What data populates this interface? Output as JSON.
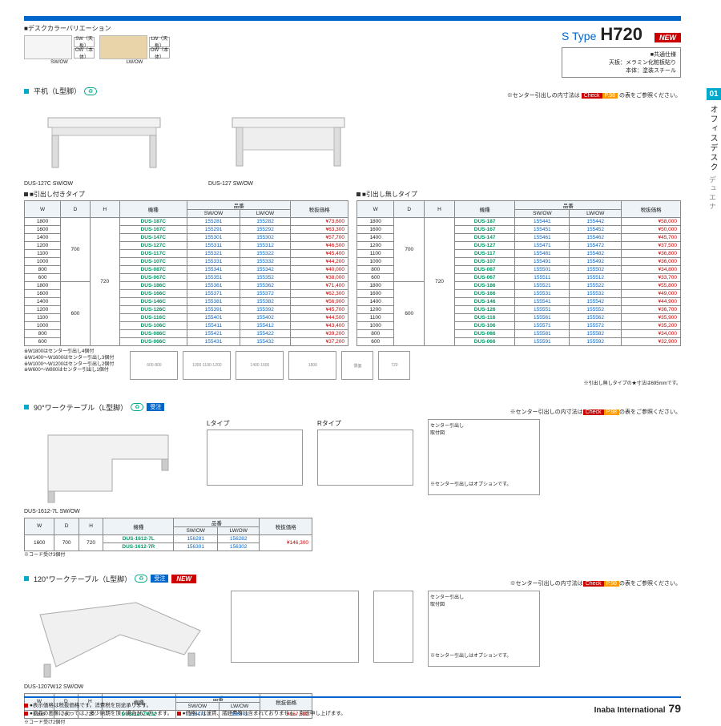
{
  "header": {
    "color_var_title": "■デスクカラーバリエーション",
    "swatches": [
      {
        "label": "SW/OW",
        "chips": [
          "SW（天板）",
          "OW（本体）"
        ],
        "desk_color": "#f5f5f5"
      },
      {
        "label": "LW/OW",
        "chips": [
          "LW（天板）",
          "OW（本体）"
        ],
        "desk_color": "#e8d4a8"
      }
    ],
    "stype": "S Type",
    "h720": "H720",
    "new": "NEW",
    "spec_title": "■共通仕様",
    "spec_line1": "天板：メラミン化粧板貼り",
    "spec_line2": "本体：塗装スチール"
  },
  "sidebar": {
    "chapter": "01",
    "text_main": "オフィスデスク",
    "text_sub": "デュエナ"
  },
  "check_note": {
    "prefix": "※センター引出しの内寸法は",
    "check": "Check",
    "page": "P.98",
    "suffix": "の表をご参照ください。"
  },
  "section1": {
    "title": "平机（L型脚）",
    "desk_left_caption": "DUS-127C SW/OW",
    "desk_right_caption": "DUS-127 SW/OW",
    "left_table_title": "■引出し付きタイプ",
    "right_table_title": "■引出し無しタイプ",
    "headers": {
      "w": "W",
      "d": "D",
      "h": "H",
      "model": "機種",
      "sw": "SW/OW",
      "lw": "LW/OW",
      "code_group": "品番",
      "price": "税抜価格"
    },
    "d_value": "700",
    "h_value": "720",
    "left_rows": [
      {
        "w": "1800",
        "model": "DUS-187C",
        "sw": "155281",
        "lw": "155282",
        "price": "¥73,600"
      },
      {
        "w": "1600",
        "model": "DUS-167C",
        "sw": "155291",
        "lw": "155292",
        "price": "¥63,300"
      },
      {
        "w": "1400",
        "model": "DUS-147C",
        "sw": "155301",
        "lw": "155302",
        "price": "¥57,700"
      },
      {
        "w": "1200",
        "model": "DUS-127C",
        "sw": "155311",
        "lw": "155312",
        "price": "¥46,500"
      },
      {
        "w": "1100",
        "model": "DUS-117C",
        "sw": "155321",
        "lw": "155322",
        "price": "¥45,400"
      },
      {
        "w": "1000",
        "model": "DUS-107C",
        "sw": "155331",
        "lw": "155332",
        "price": "¥44,200"
      },
      {
        "w": "800",
        "model": "DUS-087C",
        "sw": "155341",
        "lw": "155342",
        "price": "¥40,000"
      },
      {
        "w": "600",
        "model": "DUS-067C",
        "sw": "155351",
        "lw": "155352",
        "price": "¥38,000"
      },
      {
        "w": "1800",
        "model": "DUS-186C",
        "sw": "155361",
        "lw": "155362",
        "price": "¥71,400"
      },
      {
        "w": "1600",
        "model": "DUS-166C",
        "sw": "155371",
        "lw": "155372",
        "price": "¥62,300"
      },
      {
        "w": "1400",
        "model": "DUS-146C",
        "sw": "155381",
        "lw": "155382",
        "price": "¥56,900"
      },
      {
        "w": "1200",
        "model": "DUS-126C",
        "sw": "155391",
        "lw": "155392",
        "price": "¥45,700"
      },
      {
        "w": "1100",
        "model": "DUS-116C",
        "sw": "155401",
        "lw": "155402",
        "price": "¥44,500"
      },
      {
        "w": "1000",
        "model": "DUS-106C",
        "sw": "155411",
        "lw": "155412",
        "price": "¥43,400"
      },
      {
        "w": "800",
        "model": "DUS-086C",
        "sw": "155421",
        "lw": "155422",
        "price": "¥39,200"
      },
      {
        "w": "600",
        "model": "DUS-066C",
        "sw": "155431",
        "lw": "155432",
        "price": "¥37,200"
      }
    ],
    "right_rows": [
      {
        "w": "1800",
        "model": "DUS-187",
        "sw": "155441",
        "lw": "155442",
        "price": "¥58,000"
      },
      {
        "w": "1600",
        "model": "DUS-167",
        "sw": "155451",
        "lw": "155452",
        "price": "¥50,000"
      },
      {
        "w": "1400",
        "model": "DUS-147",
        "sw": "155461",
        "lw": "155462",
        "price": "¥45,700"
      },
      {
        "w": "1200",
        "model": "DUS-127",
        "sw": "155471",
        "lw": "155472",
        "price": "¥37,500"
      },
      {
        "w": "1100",
        "model": "DUS-117",
        "sw": "155481",
        "lw": "155482",
        "price": "¥36,800"
      },
      {
        "w": "1000",
        "model": "DUS-107",
        "sw": "155491",
        "lw": "155492",
        "price": "¥36,000"
      },
      {
        "w": "800",
        "model": "DUS-087",
        "sw": "155501",
        "lw": "155502",
        "price": "¥34,800"
      },
      {
        "w": "600",
        "model": "DUS-067",
        "sw": "155511",
        "lw": "155512",
        "price": "¥33,700"
      },
      {
        "w": "1800",
        "model": "DUS-186",
        "sw": "155521",
        "lw": "155522",
        "price": "¥55,800"
      },
      {
        "w": "1600",
        "model": "DUS-166",
        "sw": "155531",
        "lw": "155532",
        "price": "¥49,000"
      },
      {
        "w": "1400",
        "model": "DUS-146",
        "sw": "155541",
        "lw": "155542",
        "price": "¥44,900"
      },
      {
        "w": "1200",
        "model": "DUS-126",
        "sw": "155551",
        "lw": "155552",
        "price": "¥36,700"
      },
      {
        "w": "1100",
        "model": "DUS-116",
        "sw": "155561",
        "lw": "155562",
        "price": "¥35,900"
      },
      {
        "w": "1000",
        "model": "DUS-106",
        "sw": "155571",
        "lw": "155572",
        "price": "¥35,200"
      },
      {
        "w": "800",
        "model": "DUS-086",
        "sw": "155581",
        "lw": "155582",
        "price": "¥34,000"
      },
      {
        "w": "600",
        "model": "DUS-066",
        "sw": "155591",
        "lw": "155592",
        "price": "¥32,900"
      }
    ],
    "d_second": "600",
    "notes": [
      "※W1800はセンター引出し4個付",
      "※W1400～W1600はセンター引出し3個付",
      "※W1000～W1200はセンター引出し2個付",
      "※W600～W800はセンター引出し1個付"
    ],
    "diag_note": "※引出し無しタイプの★寸法は695mmです。"
  },
  "section2": {
    "title": "90°ワークテーブル（L型脚）",
    "order_badge": "受注",
    "caption": "DUS-1612-7L  SW/OW",
    "l_title": "Lタイプ",
    "r_title": "Rタイプ",
    "side_title": "センター引出し\n取付図",
    "side_note": "※センター引出しはオプションです。",
    "headers": {
      "w": "W",
      "d": "D",
      "h": "H",
      "model": "機種",
      "sw": "SW/OW",
      "lw": "LW/OW",
      "code_group": "品番",
      "price": "税抜価格"
    },
    "rows": [
      {
        "w": "1600",
        "d": "700",
        "h": "720",
        "model": "DUS-1612-7L",
        "sw": "156281",
        "lw": "156282",
        "price": "¥146,300"
      },
      {
        "w": "",
        "d": "",
        "h": "",
        "model": "DUS-1612-7R",
        "sw": "156301",
        "lw": "156302",
        "price": ""
      }
    ],
    "note": "※コード受け3個付"
  },
  "section3": {
    "title": "120°ワークテーブル（L型脚）",
    "order_badge": "受注",
    "new": "NEW",
    "caption": "DUS-1207W12 SW/OW",
    "side_title": "センター引出し\n取付図",
    "side_note": "※センター引出しはオプションです。",
    "headers": {
      "w": "W",
      "d": "D",
      "h": "H",
      "model": "機種",
      "sw": "SW/OW",
      "lw": "LW/OW",
      "code_group": "品番",
      "price": "税抜価格"
    },
    "row": {
      "w": "1200",
      "d": "700",
      "h": "720",
      "model": "DUS-1207W12",
      "sw": "156471",
      "lw": "156472",
      "price": "¥157,600"
    },
    "note": "※コード受け2個付"
  },
  "footer": {
    "note1": "●表示価格は税抜価格です。消費税を別途承ります。",
    "note2": "●商品の画像によっては、多少納期を頂く場合がございます。",
    "note3": "●価格には運賃、諸経費等は含まれておりません。別途申し上げます。",
    "brand": "Inaba International",
    "page": "79"
  }
}
